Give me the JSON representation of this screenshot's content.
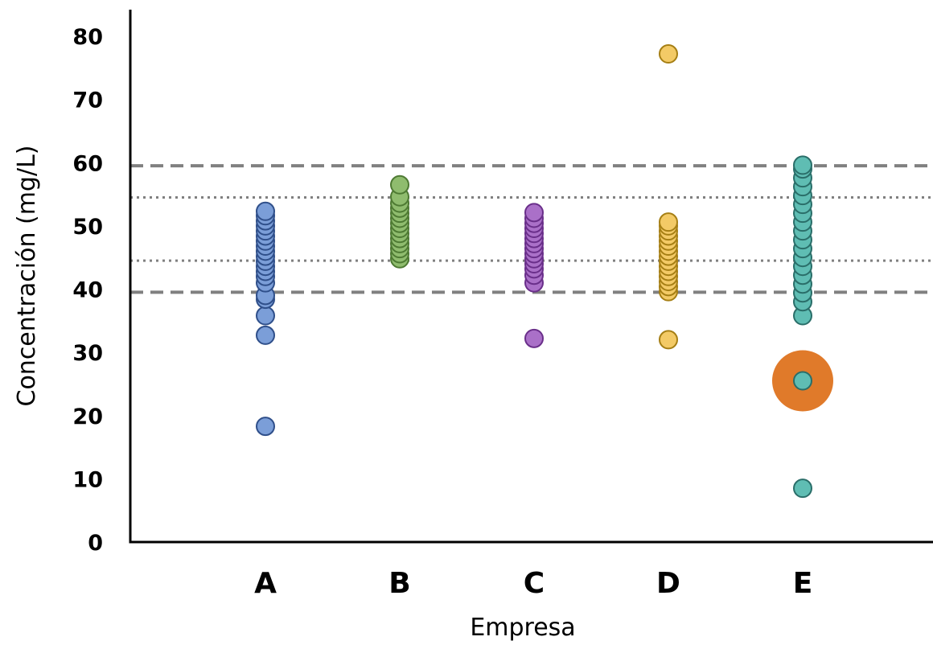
{
  "chart_data": {
    "type": "scatter",
    "title": "",
    "xlabel": "Empresa",
    "ylabel": "Concentración (mg/L)",
    "categories": [
      "A",
      "B",
      "C",
      "D",
      "E"
    ],
    "ylim": [
      0,
      80
    ],
    "yticks": [
      0,
      10,
      20,
      30,
      40,
      50,
      60,
      70,
      80
    ],
    "grid": false,
    "legend": "none",
    "reference_lines": [
      {
        "value": 59.5,
        "style": "dashed",
        "color": "#808080"
      },
      {
        "value": 54.5,
        "style": "dotted",
        "color": "#808080"
      },
      {
        "value": 44.5,
        "style": "dotted",
        "color": "#808080"
      },
      {
        "value": 39.5,
        "style": "dashed",
        "color": "#808080"
      }
    ],
    "series": [
      {
        "category": "A",
        "fill": "#7B9ED8",
        "stroke": "#2F4F8A",
        "values": [
          18.3,
          32.7,
          35.8,
          38.4,
          39.0,
          41.0,
          42.0,
          42.8,
          43.6,
          44.4,
          45.2,
          46.0,
          46.8,
          47.6,
          48.4,
          49.2,
          50.0,
          50.8,
          51.6,
          52.3
        ]
      },
      {
        "category": "B",
        "fill": "#8FBC6E",
        "stroke": "#4E7A33",
        "values": [
          44.8,
          45.6,
          46.4,
          47.2,
          48.0,
          48.8,
          49.6,
          50.4,
          51.2,
          52.0,
          52.8,
          53.6,
          54.6,
          56.5
        ]
      },
      {
        "category": "C",
        "fill": "#AA70C8",
        "stroke": "#6A2F8A",
        "values": [
          32.2,
          41.0,
          42.2,
          43.2,
          44.0,
          44.8,
          45.6,
          46.4,
          47.2,
          48.0,
          48.8,
          49.6,
          50.4,
          51.2,
          52.1
        ]
      },
      {
        "category": "D",
        "fill": "#F3CA66",
        "stroke": "#A67F14",
        "values": [
          32.0,
          39.6,
          40.4,
          41.2,
          42.0,
          42.8,
          43.6,
          44.4,
          45.2,
          46.0,
          46.8,
          47.6,
          48.4,
          49.2,
          50.0,
          50.6,
          77.2
        ]
      },
      {
        "category": "E",
        "fill": "#5FBDB3",
        "stroke": "#2A6E69",
        "values": [
          8.5,
          25.5,
          35.8,
          38.0,
          39.4,
          40.8,
          42.2,
          43.6,
          45.0,
          46.4,
          47.8,
          49.2,
          50.6,
          52.0,
          53.4,
          54.8,
          56.2,
          57.6,
          59.0,
          59.6
        ]
      }
    ],
    "highlight": {
      "category": "E",
      "value": 25.5,
      "color": "#E07A2A"
    }
  }
}
